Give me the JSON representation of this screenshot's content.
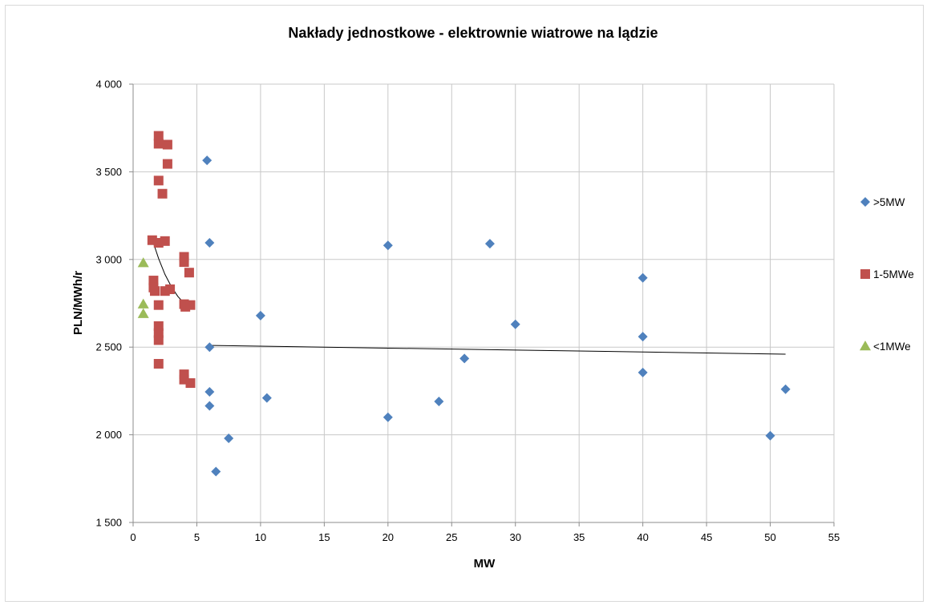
{
  "chart_data": {
    "type": "scatter",
    "title": "Nakłady jednostkowe - elektrownie wiatrowe na lądzie",
    "xlabel": "MW",
    "ylabel": "PLN/MWh/r",
    "xlim": [
      0,
      55
    ],
    "ylim": [
      1500,
      4000
    ],
    "x_ticks": [
      0,
      5,
      10,
      15,
      20,
      25,
      30,
      35,
      40,
      45,
      50,
      55
    ],
    "x_tick_labels": [
      "0",
      "5",
      "10",
      "15",
      "20",
      "25",
      "30",
      "35",
      "40",
      "45",
      "50",
      "55"
    ],
    "y_ticks": [
      1500,
      2000,
      2500,
      3000,
      3500,
      4000
    ],
    "y_tick_labels": [
      "1 500",
      "2 000",
      "2 500",
      "3 000",
      "3 500",
      "4 000"
    ],
    "grid": true,
    "legend_position": "right",
    "series": [
      {
        "name": ">5MW",
        "marker": "diamond",
        "color": "#4F81BD",
        "points": [
          [
            5.8,
            3565
          ],
          [
            6.0,
            3095
          ],
          [
            6.0,
            2500
          ],
          [
            6.0,
            2245
          ],
          [
            6.0,
            2165
          ],
          [
            6.5,
            1790
          ],
          [
            7.5,
            1980
          ],
          [
            10.0,
            2680
          ],
          [
            10.5,
            2210
          ],
          [
            20.0,
            3080
          ],
          [
            20.0,
            2100
          ],
          [
            24.0,
            2190
          ],
          [
            26.0,
            2435
          ],
          [
            28.0,
            3090
          ],
          [
            30.0,
            2630
          ],
          [
            40.0,
            2895
          ],
          [
            40.0,
            2560
          ],
          [
            40.0,
            2355
          ],
          [
            50.0,
            1995
          ],
          [
            51.2,
            2260
          ]
        ]
      },
      {
        "name": "1-5MWe",
        "marker": "square",
        "color": "#C0504D",
        "points": [
          [
            1.5,
            3110
          ],
          [
            1.6,
            2880
          ],
          [
            1.6,
            2840
          ],
          [
            1.7,
            2820
          ],
          [
            2.0,
            3705
          ],
          [
            2.0,
            3660
          ],
          [
            2.0,
            3450
          ],
          [
            2.0,
            3095
          ],
          [
            2.0,
            2740
          ],
          [
            2.0,
            2620
          ],
          [
            2.0,
            2580
          ],
          [
            2.0,
            2540
          ],
          [
            2.0,
            2405
          ],
          [
            2.3,
            3375
          ],
          [
            2.5,
            3105
          ],
          [
            2.5,
            2820
          ],
          [
            2.7,
            3655
          ],
          [
            2.7,
            3545
          ],
          [
            2.9,
            2830
          ],
          [
            4.0,
            3015
          ],
          [
            4.0,
            2985
          ],
          [
            4.0,
            2745
          ],
          [
            4.0,
            2345
          ],
          [
            4.0,
            2315
          ],
          [
            4.1,
            2730
          ],
          [
            4.4,
            2925
          ],
          [
            4.5,
            2740
          ],
          [
            4.5,
            2295
          ]
        ]
      },
      {
        "name": "<1MWe",
        "marker": "triangle",
        "color": "#9BBB59",
        "points": [
          [
            0.8,
            2980
          ],
          [
            0.8,
            2745
          ],
          [
            0.8,
            2690
          ]
        ]
      }
    ],
    "trendlines": [
      {
        "series": ">5MW",
        "x_start": 5.8,
        "y_start": 2510,
        "x_end": 51.2,
        "y_end": 2460,
        "color": "#000000"
      },
      {
        "series": "1-5MWe",
        "points": [
          [
            1.5,
            3115
          ],
          [
            2.0,
            3005
          ],
          [
            2.5,
            2915
          ],
          [
            3.0,
            2845
          ],
          [
            3.5,
            2790
          ],
          [
            4.0,
            2750
          ],
          [
            4.4,
            2722
          ]
        ],
        "color": "#000000"
      }
    ]
  }
}
